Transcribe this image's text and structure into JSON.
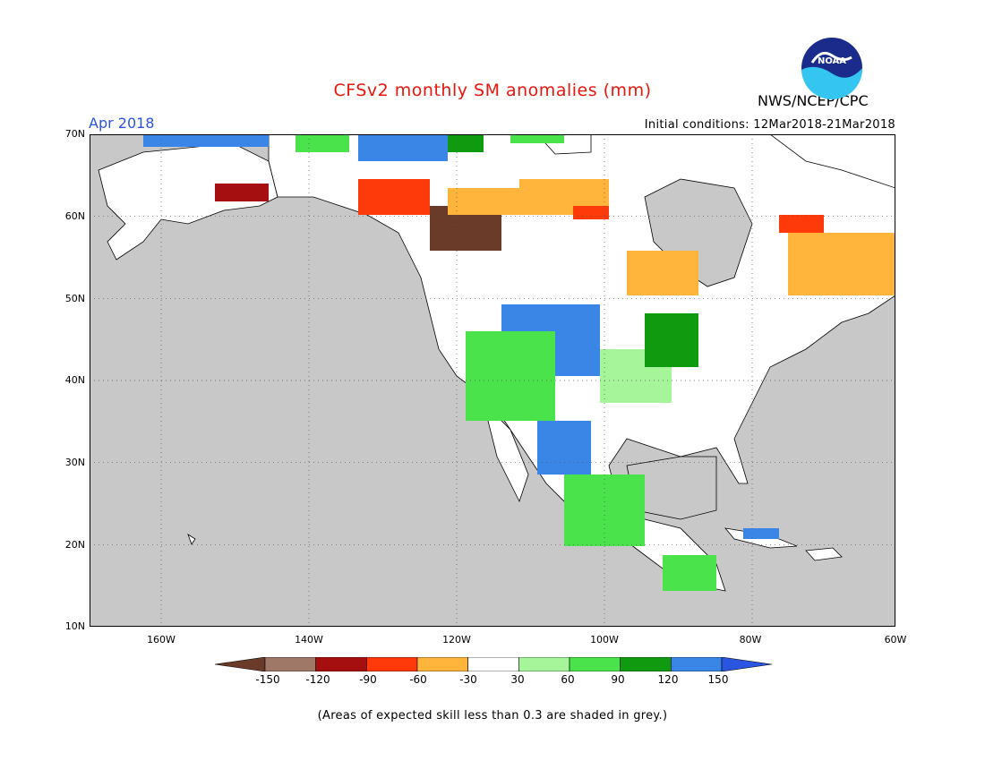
{
  "header": {
    "title": "CFSv2 monthly SM anomalies (mm)",
    "agency": "NWS/NCEP/CPC",
    "month": "Apr 2018",
    "initial_conditions": "Initial conditions: 12Mar2018-21Mar2018"
  },
  "logo": {
    "text": "NOAA",
    "colors": {
      "dark": "#1a2b8c",
      "light": "#34c6f0"
    }
  },
  "map": {
    "lat_labels": [
      "70N",
      "60N",
      "50N",
      "40N",
      "30N",
      "20N",
      "10N"
    ],
    "lon_labels": [
      "160W",
      "140W",
      "120W",
      "100W",
      "80W",
      "60W"
    ],
    "colors": {
      "ocean": "#c8c8c8",
      "land": "#ffffff",
      "grid": "#555555"
    }
  },
  "colorbar": {
    "labels": [
      "-150",
      "-120",
      "-90",
      "-60",
      "-30",
      "30",
      "60",
      "90",
      "120",
      "150"
    ],
    "colors": [
      "#6b3b2a",
      "#a07868",
      "#a50f0f",
      "#ff3a0a",
      "#ffb43c",
      "#ffffff",
      "#a6f59a",
      "#4be34b",
      "#0f9a0f",
      "#3a86e6",
      "#2a55e0"
    ]
  },
  "footnote": "(Areas of expected skill less than 0.3 are shaded in grey.)"
}
